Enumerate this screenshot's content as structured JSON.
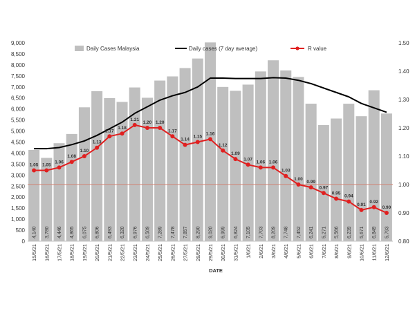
{
  "chart_data": {
    "type": "bar",
    "title": "",
    "xlabel": "DATE",
    "ylabel": "",
    "ylim": [
      0,
      9000
    ],
    "y2lim": [
      0.8,
      1.5
    ],
    "legend_position": "top",
    "categories": [
      "15/5/21",
      "16/5/21",
      "17/5/21",
      "18/5/21",
      "19/5/21",
      "20/5/21",
      "21/5/21",
      "22/5/21",
      "23/5/21",
      "24/5/21",
      "25/5/21",
      "26/5/21",
      "27/5/21",
      "28/5/21",
      "29/5/21",
      "30/5/21",
      "31/5/21",
      "1/6/21",
      "2/6/21",
      "3/6/21",
      "4/6/21",
      "5/6/21",
      "6/6/21",
      "7/6/21",
      "8/6/21",
      "9/6/21",
      "10/6/21",
      "11/6/21",
      "12/6/21"
    ],
    "yticks": [
      "0",
      "500",
      "1,000",
      "1,500",
      "2,000",
      "2,500",
      "3,000",
      "3,500",
      "4,000",
      "4,500",
      "5,000",
      "5,500",
      "6,000",
      "6,500",
      "7,000",
      "7,500",
      "8,000",
      "8,500",
      "9,000"
    ],
    "y2ticks": [
      "0.80",
      "0.90",
      "1.00",
      "1.10",
      "1.20",
      "1.30",
      "1.40",
      "1.50"
    ],
    "series": [
      {
        "name": "Daily Cases Malaysia",
        "kind": "bar",
        "color": "#bfbfbf",
        "values": [
          4140,
          3780,
          4446,
          4865,
          6075,
          6806,
          6493,
          6320,
          6976,
          6509,
          7289,
          7478,
          7857,
          8290,
          9020,
          6999,
          6824,
          7105,
          7703,
          8209,
          7748,
          7452,
          6241,
          5271,
          5566,
          6239,
          5671,
          6849,
          5793
        ],
        "labels": [
          "4,140",
          "3,780",
          "4,446",
          "4,865",
          "6,075",
          "6,806",
          "6,493",
          "6,320",
          "6,976",
          "6,509",
          "7,289",
          "7,478",
          "7,857",
          "8,290",
          "9,020",
          "6,999",
          "6,824",
          "7,105",
          "7,703",
          "8,209",
          "7,748",
          "7,452",
          "6,241",
          "5,271",
          "5,566",
          "6,239",
          "5,671",
          "6,849",
          "5,793"
        ]
      },
      {
        "name": "Daily cases (7 day average)",
        "kind": "line",
        "color": "#000000",
        "values": [
          4200,
          4200,
          4250,
          4380,
          4550,
          4800,
          5100,
          5400,
          5800,
          6100,
          6400,
          6600,
          6750,
          7000,
          7400,
          7400,
          7380,
          7380,
          7380,
          7420,
          7400,
          7300,
          7150,
          6950,
          6750,
          6550,
          6250,
          6050,
          5850
        ]
      },
      {
        "name": "R value",
        "kind": "line",
        "axis": "secondary",
        "color": "#e02020",
        "values": [
          1.05,
          1.05,
          1.06,
          1.08,
          1.1,
          1.13,
          1.17,
          1.18,
          1.21,
          1.2,
          1.2,
          1.17,
          1.14,
          1.15,
          1.16,
          1.12,
          1.09,
          1.07,
          1.06,
          1.06,
          1.03,
          1.0,
          0.99,
          0.97,
          0.95,
          0.94,
          0.91,
          0.92,
          0.9
        ],
        "labels": [
          "1.05",
          "1.05",
          "1.06",
          "1.08",
          "1.10",
          "1.13",
          "1.17",
          "1.18",
          "1.21",
          "1.20",
          "1.20",
          "1.17",
          "1.14",
          "1.15",
          "1.16",
          "1.12",
          "1.09",
          "1.07",
          "1.06",
          "1.06",
          "1.03",
          "1.00",
          "0.99",
          "0.97",
          "0.95",
          "0.94",
          "0.91",
          "0.92",
          "0.90"
        ]
      }
    ],
    "reference_line": {
      "value": 1.0,
      "axis": "secondary",
      "color": "#d08070"
    }
  }
}
